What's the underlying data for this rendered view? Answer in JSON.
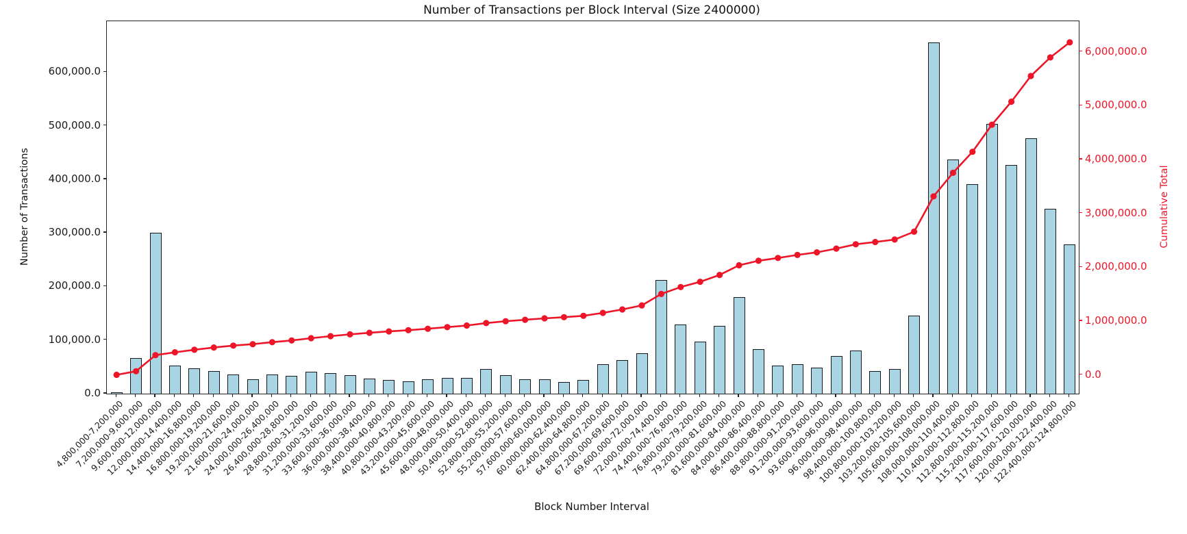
{
  "chart_data": {
    "type": "bar+line",
    "title": "Number of Transactions per Block Interval (Size 2400000)",
    "xlabel": "Block Number Interval",
    "ylabel_left": "Number of Transactions",
    "ylabel_right": "Cumulative Total",
    "grid": false,
    "legend": "none",
    "categories": [
      "4,800,000-7,200,000",
      "7,200,000-9,600,000",
      "9,600,000-12,000,000",
      "12,000,000-14,400,000",
      "14,400,000-16,800,000",
      "16,800,000-19,200,000",
      "19,200,000-21,600,000",
      "21,600,000-24,000,000",
      "24,000,000-26,400,000",
      "26,400,000-28,800,000",
      "28,800,000-31,200,000",
      "31,200,000-33,600,000",
      "33,600,000-36,000,000",
      "36,000,000-38,400,000",
      "38,400,000-40,800,000",
      "40,800,000-43,200,000",
      "43,200,000-45,600,000",
      "45,600,000-48,000,000",
      "48,000,000-50,400,000",
      "50,400,000-52,800,000",
      "52,800,000-55,200,000",
      "55,200,000-57,600,000",
      "57,600,000-60,000,000",
      "60,000,000-62,400,000",
      "62,400,000-64,800,000",
      "64,800,000-67,200,000",
      "67,200,000-69,600,000",
      "69,600,000-72,000,000",
      "72,000,000-74,400,000",
      "74,400,000-76,800,000",
      "76,800,000-79,200,000",
      "79,200,000-81,600,000",
      "81,600,000-84,000,000",
      "84,000,000-86,400,000",
      "86,400,000-88,800,000",
      "88,800,000-91,200,000",
      "91,200,000-93,600,000",
      "93,600,000-96,000,000",
      "96,000,000-98,400,000",
      "98,400,000-100,800,000",
      "100,800,000-103,200,000",
      "103,200,000-105,600,000",
      "105,600,000-108,000,000",
      "108,000,000-110,400,000",
      "110,400,000-112,800,000",
      "112,800,000-115,200,000",
      "115,200,000-117,600,000",
      "117,600,000-120,000,000",
      "120,000,000-122,400,000",
      "122,400,000-124,800,000"
    ],
    "series": [
      {
        "name": "Number of Transactions",
        "type": "bar",
        "axis": "left",
        "values": [
          2000,
          66000,
          300000,
          52500,
          47000,
          42000,
          36000,
          26500,
          36000,
          33000,
          41000,
          38000,
          34000,
          28500,
          26000,
          22500,
          27000,
          30000,
          29500,
          46000,
          34000,
          26500,
          26500,
          21500,
          26000,
          55000,
          63000,
          75000,
          212000,
          129000,
          97000,
          127000,
          180000,
          83000,
          53000,
          55000,
          49000,
          70000,
          80000,
          42000,
          46000,
          146000,
          655000,
          437000,
          391000,
          503000,
          427000,
          476000,
          345000,
          279000
        ]
      },
      {
        "name": "Cumulative Total",
        "type": "line",
        "axis": "right",
        "values": [
          2000,
          68000,
          368000,
          420500,
          467500,
          509500,
          545500,
          572000,
          608000,
          641000,
          682000,
          720000,
          754000,
          782500,
          808500,
          831000,
          858000,
          888000,
          917500,
          963500,
          997500,
          1024000,
          1050500,
          1072000,
          1098000,
          1153000,
          1216000,
          1291000,
          1503000,
          1632000,
          1729000,
          1856000,
          2036000,
          2119000,
          2172000,
          2227000,
          2276000,
          2346000,
          2426000,
          2468000,
          2514000,
          2660000,
          3315000,
          3752000,
          4143000,
          4646000,
          5073000,
          5549000,
          5894000,
          6173000
        ]
      }
    ],
    "yticks_left": {
      "values": [
        0,
        100000,
        200000,
        300000,
        400000,
        500000,
        600000
      ],
      "labels": [
        "0.0",
        "100,000.0",
        "200,000.0",
        "300,000.0",
        "400,000.0",
        "500,000.0",
        "600,000.0"
      ]
    },
    "yticks_right": {
      "values": [
        0,
        1000000,
        2000000,
        3000000,
        4000000,
        5000000,
        6000000
      ],
      "labels": [
        "0.0",
        "1,000,000.0",
        "2,000,000.0",
        "3,000,000.0",
        "4,000,000.0",
        "5,000,000.0",
        "6,000,000.0"
      ]
    },
    "ylim_left": [
      0,
      695000
    ],
    "ylim_right": [
      -347000,
      6566000
    ],
    "colors": {
      "bar_fill": "#a9d4e4",
      "bar_edge": "#16181d",
      "line": "#ed1628",
      "right_axis_text": "#ed1628",
      "axis_text": "#1a1a1a",
      "spine": "#222222"
    }
  }
}
